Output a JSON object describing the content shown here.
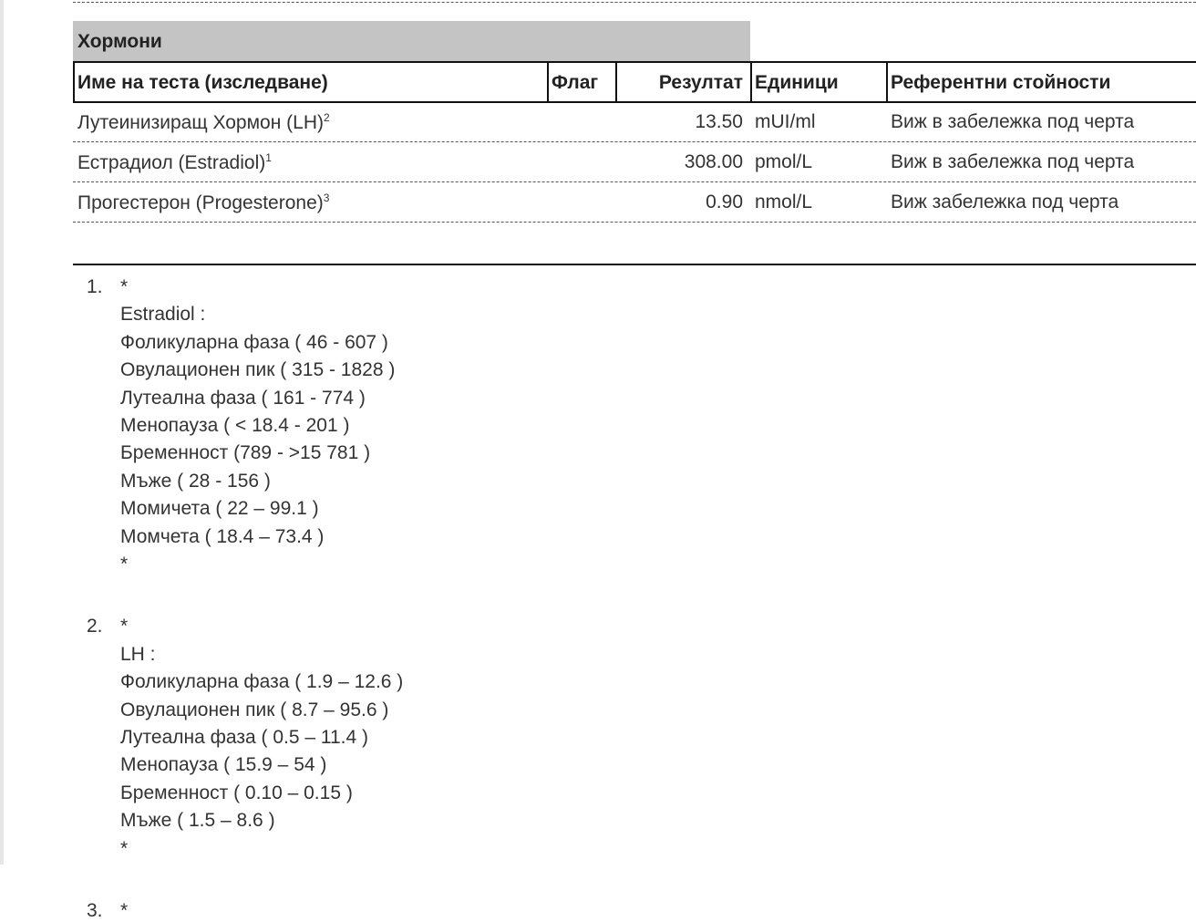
{
  "section": {
    "title": "Хормони"
  },
  "table": {
    "headers": [
      "Име на теста (изследване)",
      "Флаг",
      "Резултат",
      "Единици",
      "Референтни стойности"
    ],
    "rows": [
      {
        "name": "Лутеинизиращ Хормон (LH)",
        "sup": "2",
        "result": "13.50",
        "unit": "mUI/ml",
        "reference": "Виж в забележка под черта"
      },
      {
        "name": "Естрадиол (Estradiol)",
        "sup": "1",
        "result": "308.00",
        "unit": "pmol/L",
        "reference": "Виж в забележка под черта"
      },
      {
        "name": "Прогестерон (Progesterone)",
        "sup": "3",
        "result": "0.90",
        "unit": "nmol/L",
        "reference": "Виж забележка под черта"
      }
    ]
  },
  "notes": {
    "items": [
      {
        "marker": "1.",
        "lines": [
          "*",
          "Estradiol :",
          "Фоликуларна фаза ( 46 - 607 )",
          "Овулационен пик ( 315 - 1828 )",
          "Лутеална фаза ( 161 - 774 )",
          "Менопауза ( < 18.4 - 201 )",
          "Бременност (789 - >15 781 )",
          "Мъже ( 28 - 156 )",
          "Момичета ( 22 – 99.1 )",
          "Момчета ( 18.4 – 73.4 )",
          "*"
        ]
      },
      {
        "marker": "2.",
        "lines": [
          "*",
          "LH :",
          "Фоликуларна фаза ( 1.9 – 12.6 )",
          "Овулационен пик ( 8.7 – 95.6 )",
          "Лутеална фаза ( 0.5 – 11.4 )",
          "Менопауза ( 15.9 – 54 )",
          "Бременност ( 0.10 – 0.15 )",
          "Мъже ( 1.5 – 8.6 )",
          "*"
        ]
      },
      {
        "marker": "3.",
        "lines": [
          "*"
        ]
      }
    ]
  }
}
